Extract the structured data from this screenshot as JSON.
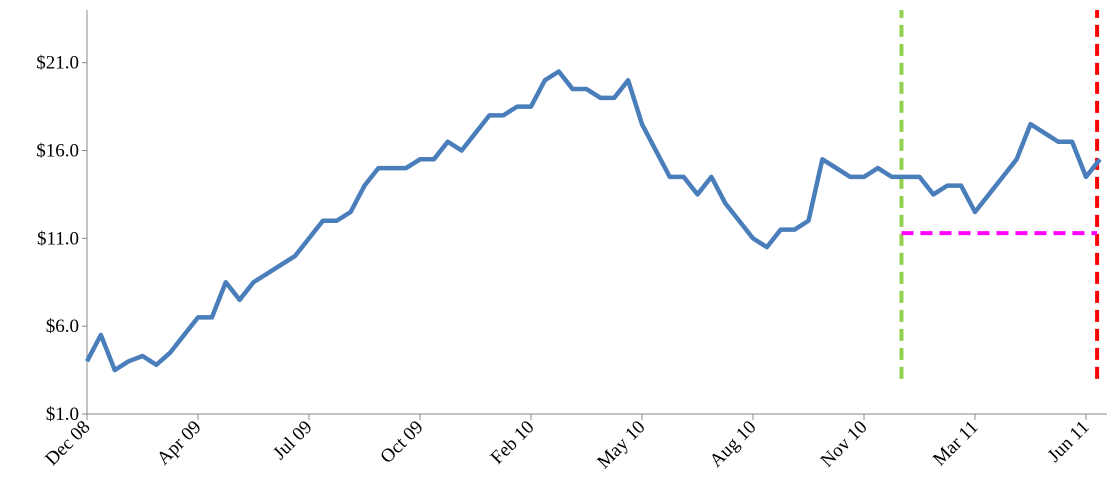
{
  "chart_data": {
    "type": "line",
    "categories": [
      "Dec 08",
      null,
      null,
      null,
      null,
      null,
      null,
      null,
      "Apr 09",
      null,
      null,
      null,
      null,
      null,
      null,
      null,
      "Jul 09",
      null,
      null,
      null,
      null,
      null,
      null,
      null,
      "Oct 09",
      null,
      null,
      null,
      null,
      null,
      null,
      null,
      "Feb 10",
      null,
      null,
      null,
      null,
      null,
      null,
      null,
      "May 10",
      null,
      null,
      null,
      null,
      null,
      null,
      null,
      "Aug 10",
      null,
      null,
      null,
      null,
      null,
      null,
      null,
      "Nov 10",
      null,
      null,
      null,
      null,
      null,
      null,
      null,
      "Mar 11",
      null,
      null,
      null,
      null,
      null,
      null,
      null,
      "Jun 11",
      null
    ],
    "series": [
      {
        "color": "#4a7ebb",
        "values": [
          4.0,
          5.5,
          3.5,
          4.0,
          4.3,
          3.8,
          4.5,
          5.5,
          6.5,
          6.5,
          8.5,
          7.5,
          8.5,
          9.0,
          9.5,
          10.0,
          11.0,
          12.0,
          12.0,
          12.5,
          14.0,
          15.0,
          15.0,
          15.0,
          15.5,
          15.5,
          16.5,
          16.0,
          17.0,
          18.0,
          18.0,
          18.5,
          18.5,
          20.0,
          20.5,
          19.5,
          19.5,
          19.0,
          19.0,
          20.0,
          17.5,
          16.0,
          14.5,
          14.5,
          13.5,
          14.5,
          13.0,
          12.0,
          11.0,
          10.5,
          11.5,
          11.5,
          12.0,
          15.5,
          15.0,
          14.5,
          14.5,
          15.0,
          14.5,
          14.5,
          14.5,
          13.5,
          14.0,
          14.0,
          12.5,
          13.5,
          14.5,
          15.5,
          17.5,
          17.0,
          16.5,
          16.5,
          14.5,
          15.5
        ]
      }
    ],
    "ylim": [
      1,
      24
    ],
    "yticks": [
      {
        "value": 1,
        "label": "$1.0"
      },
      {
        "value": 6,
        "label": "$6.0"
      },
      {
        "value": 11,
        "label": "$11.0"
      },
      {
        "value": 16,
        "label": "$16.0"
      },
      {
        "value": 21,
        "label": "$21.0"
      }
    ],
    "reference_lines": [
      {
        "orientation": "vertical",
        "x": 58.7,
        "y_range": [
          3,
          24
        ],
        "color": "#92d050"
      },
      {
        "orientation": "vertical",
        "x": 72.8,
        "y_range": [
          3,
          24
        ],
        "color": "#ff0000"
      },
      {
        "orientation": "horizontal",
        "y": 11.3,
        "x_range": [
          58.7,
          72.8
        ],
        "color": "#ff00ff"
      }
    ]
  }
}
